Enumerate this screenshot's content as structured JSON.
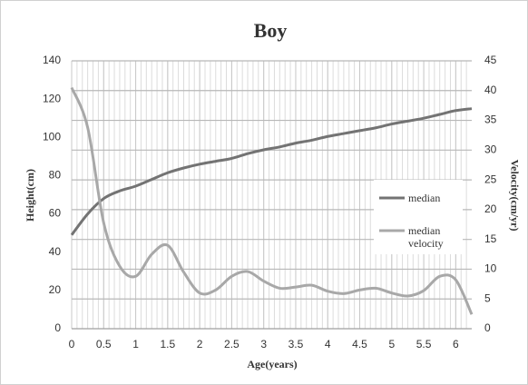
{
  "chart_data": {
    "type": "line",
    "title": "Boy",
    "x_label": "Age(years)",
    "y_label": "Height(cm)",
    "y2_label": "Velocity(cm/yr)",
    "x": [
      0,
      0.25,
      0.5,
      0.75,
      1,
      1.25,
      1.5,
      1.75,
      2,
      2.25,
      2.5,
      2.75,
      3,
      3.25,
      3.5,
      3.75,
      4,
      4.25,
      4.5,
      4.75,
      5,
      5.25,
      5.5,
      5.75,
      6,
      6.25
    ],
    "series": [
      {
        "name": "median",
        "color": "#737373",
        "axis": "y",
        "values": [
          49,
          60,
          68,
          72,
          74.5,
          78,
          81.5,
          84,
          86,
          87.5,
          89,
          91.5,
          93.5,
          95,
          97,
          98.5,
          100.5,
          102,
          103.5,
          105,
          107,
          108.5,
          110,
          112,
          114,
          115
        ]
      },
      {
        "name": "median velocity",
        "color": "#a8a8a8",
        "axis": "y2",
        "values": [
          40.5,
          33.8,
          17.8,
          10.5,
          8.8,
          12.5,
          14,
          9.5,
          6,
          6.5,
          8.8,
          9.6,
          8,
          6.8,
          7,
          7.3,
          6.3,
          5.9,
          6.5,
          6.8,
          6,
          5.5,
          6.4,
          8.8,
          8.2,
          2.4
        ]
      }
    ],
    "xlim": [
      0,
      6.25
    ],
    "xticks": [
      0,
      0.5,
      1,
      1.5,
      2,
      2.5,
      3,
      3.5,
      4,
      4.5,
      5,
      5.5,
      6
    ],
    "ylim": [
      0,
      140
    ],
    "yticks": [
      0,
      20,
      40,
      60,
      80,
      100,
      120,
      140
    ],
    "y2lim": [
      0,
      45
    ],
    "y2ticks": [
      0,
      5,
      10,
      15,
      20,
      25,
      30,
      35,
      40,
      45
    ],
    "grid": true,
    "legend": "right"
  }
}
